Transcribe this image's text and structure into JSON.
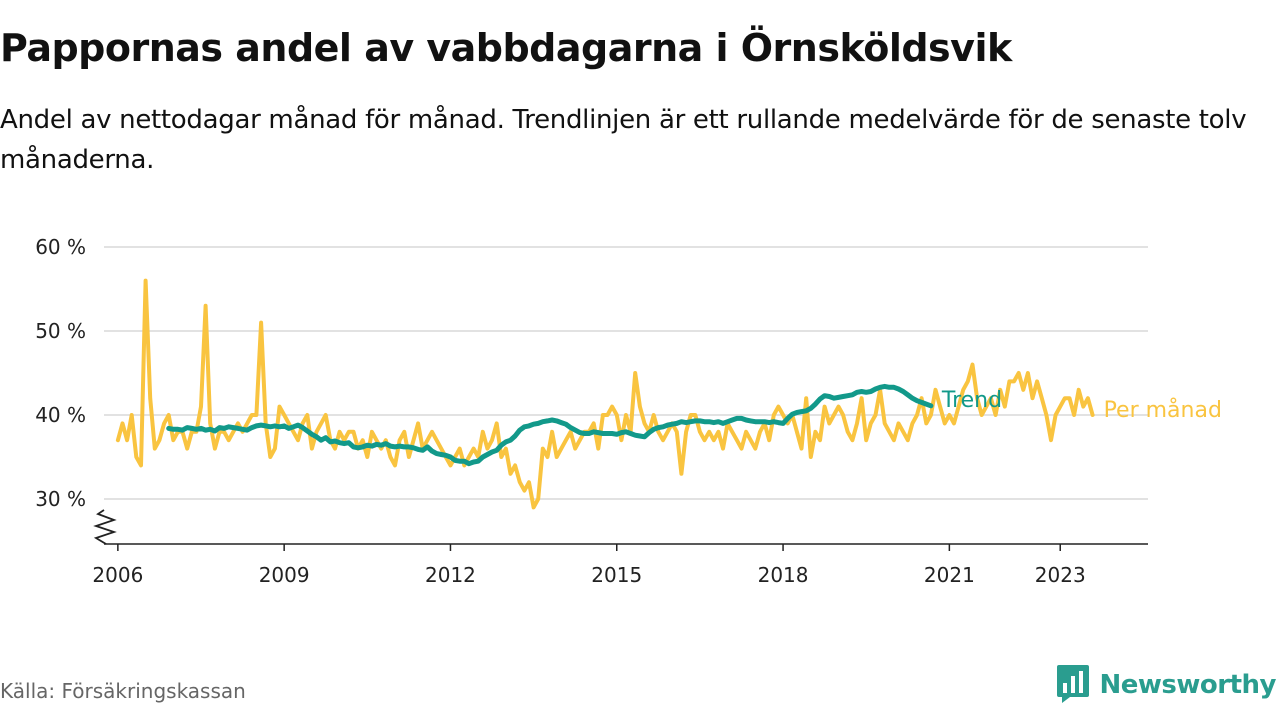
{
  "title": "Pappornas andel av vabbdagarna i Örnsköldsvik",
  "subtitle": "Andel av nettodagar månad för månad. Trendlinjen är ett rullande medelvärde för de senaste tolv månaderna.",
  "source": "Källa: Försäkringskassan",
  "brand": {
    "name": "Newsworthy",
    "logo_icon": "bar-chart-speech-bubble-icon"
  },
  "colors": {
    "monthly": "#F9C440",
    "trend": "#12998A",
    "grid": "#d9d9d9",
    "axis": "#222222",
    "brand": "#2a9d8f"
  },
  "chart_data": {
    "type": "line",
    "title": "Pappornas andel av vabbdagarna i Örnsköldsvik",
    "ylabel": "",
    "xlabel": "",
    "ylim": [
      25,
      60
    ],
    "y_ticks": [
      {
        "value": 30,
        "label": "30 %"
      },
      {
        "value": 40,
        "label": "40 %"
      },
      {
        "value": 50,
        "label": "50 %"
      },
      {
        "value": 60,
        "label": "60 %"
      }
    ],
    "x_ticks": [
      {
        "value": "2006-01",
        "label": "2006"
      },
      {
        "value": "2009-01",
        "label": "2009"
      },
      {
        "value": "2012-01",
        "label": "2012"
      },
      {
        "value": "2015-01",
        "label": "2015"
      },
      {
        "value": "2018-01",
        "label": "2018"
      },
      {
        "value": "2021-01",
        "label": "2021"
      },
      {
        "value": "2023-01",
        "label": "2023"
      }
    ],
    "xlim": [
      "2005-10",
      "2024-08"
    ],
    "y_axis_break": true,
    "grid": true,
    "series": [
      {
        "name": "Per månad",
        "start": "2006-01",
        "values": [
          37,
          39,
          37,
          40,
          35,
          34,
          56,
          42,
          36,
          37,
          39,
          40,
          37,
          38,
          38,
          36,
          38,
          38,
          41,
          53,
          39,
          36,
          38,
          38,
          37,
          38,
          39,
          38,
          39,
          40,
          40,
          51,
          39,
          35,
          36,
          41,
          40,
          39,
          38,
          37,
          39,
          40,
          36,
          38,
          39,
          40,
          37,
          36,
          38,
          37,
          38,
          38,
          36,
          37,
          35,
          38,
          37,
          36,
          37,
          35,
          34,
          37,
          38,
          35,
          37,
          39,
          36,
          37,
          38,
          37,
          36,
          35,
          34,
          35,
          36,
          34,
          35,
          36,
          35,
          38,
          36,
          37,
          39,
          35,
          36,
          33,
          34,
          32,
          31,
          32,
          29,
          30,
          36,
          35,
          38,
          35,
          36,
          37,
          38,
          36,
          37,
          38,
          38,
          39,
          36,
          40,
          40,
          41,
          40,
          37,
          40,
          38,
          45,
          41,
          39,
          38,
          40,
          38,
          37,
          38,
          39,
          38,
          33,
          38,
          40,
          40,
          38,
          37,
          38,
          37,
          38,
          36,
          39,
          38,
          37,
          36,
          38,
          37,
          36,
          38,
          39,
          37,
          40,
          41,
          40,
          39,
          40,
          38,
          36,
          42,
          35,
          38,
          37,
          41,
          39,
          40,
          41,
          40,
          38,
          37,
          39,
          42,
          37,
          39,
          40,
          43,
          39,
          38,
          37,
          39,
          38,
          37,
          39,
          40,
          42,
          39,
          40,
          43,
          41,
          39,
          40,
          39,
          41,
          43,
          44,
          46,
          42,
          40,
          41,
          42,
          40,
          43,
          41,
          44,
          44,
          45,
          43,
          45,
          42,
          44,
          42,
          40,
          37,
          40,
          41,
          42,
          42,
          40,
          43,
          41,
          42,
          40
        ]
      },
      {
        "name": "Trend",
        "start": "2006-12",
        "values": [
          38.4,
          38.3,
          38.3,
          38.2,
          38.5,
          38.4,
          38.3,
          38.4,
          38.2,
          38.3,
          38.1,
          38.5,
          38.4,
          38.6,
          38.5,
          38.4,
          38.3,
          38.2,
          38.5,
          38.7,
          38.8,
          38.7,
          38.6,
          38.7,
          38.6,
          38.7,
          38.4,
          38.6,
          38.8,
          38.5,
          38.1,
          37.7,
          37.4,
          37.0,
          37.3,
          36.8,
          36.9,
          36.7,
          36.6,
          36.7,
          36.2,
          36.1,
          36.2,
          36.4,
          36.3,
          36.5,
          36.4,
          36.6,
          36.3,
          36.2,
          36.3,
          36.2,
          36.2,
          36.1,
          35.9,
          35.8,
          36.2,
          35.7,
          35.4,
          35.3,
          35.2,
          35.0,
          34.6,
          34.5,
          34.5,
          34.2,
          34.4,
          34.5,
          35.0,
          35.3,
          35.6,
          35.8,
          36.4,
          36.8,
          37.0,
          37.5,
          38.2,
          38.6,
          38.7,
          38.9,
          39.0,
          39.2,
          39.3,
          39.4,
          39.3,
          39.1,
          38.9,
          38.5,
          38.2,
          37.9,
          37.8,
          37.8,
          38.0,
          37.9,
          37.8,
          37.8,
          37.8,
          37.7,
          37.9,
          38.0,
          37.8,
          37.6,
          37.5,
          37.4,
          37.9,
          38.3,
          38.5,
          38.6,
          38.8,
          38.9,
          39.0,
          39.2,
          39.1,
          39.2,
          39.3,
          39.3,
          39.2,
          39.2,
          39.1,
          39.2,
          39.0,
          39.2,
          39.4,
          39.6,
          39.6,
          39.4,
          39.3,
          39.2,
          39.2,
          39.2,
          39.1,
          39.2,
          39.1,
          39.0,
          39.6,
          40.1,
          40.3,
          40.4,
          40.5,
          40.8,
          41.3,
          41.9,
          42.3,
          42.2,
          42.0,
          42.1,
          42.2,
          42.3,
          42.4,
          42.7,
          42.8,
          42.7,
          42.8,
          43.1,
          43.3,
          43.4,
          43.3,
          43.3,
          43.1,
          42.8,
          42.4,
          42.0,
          41.7,
          41.5,
          41.3,
          41.1
        ]
      }
    ],
    "end_labels": [
      {
        "series": "Trend",
        "label": "Trend"
      },
      {
        "series": "Per månad",
        "label": "Per månad"
      }
    ]
  }
}
